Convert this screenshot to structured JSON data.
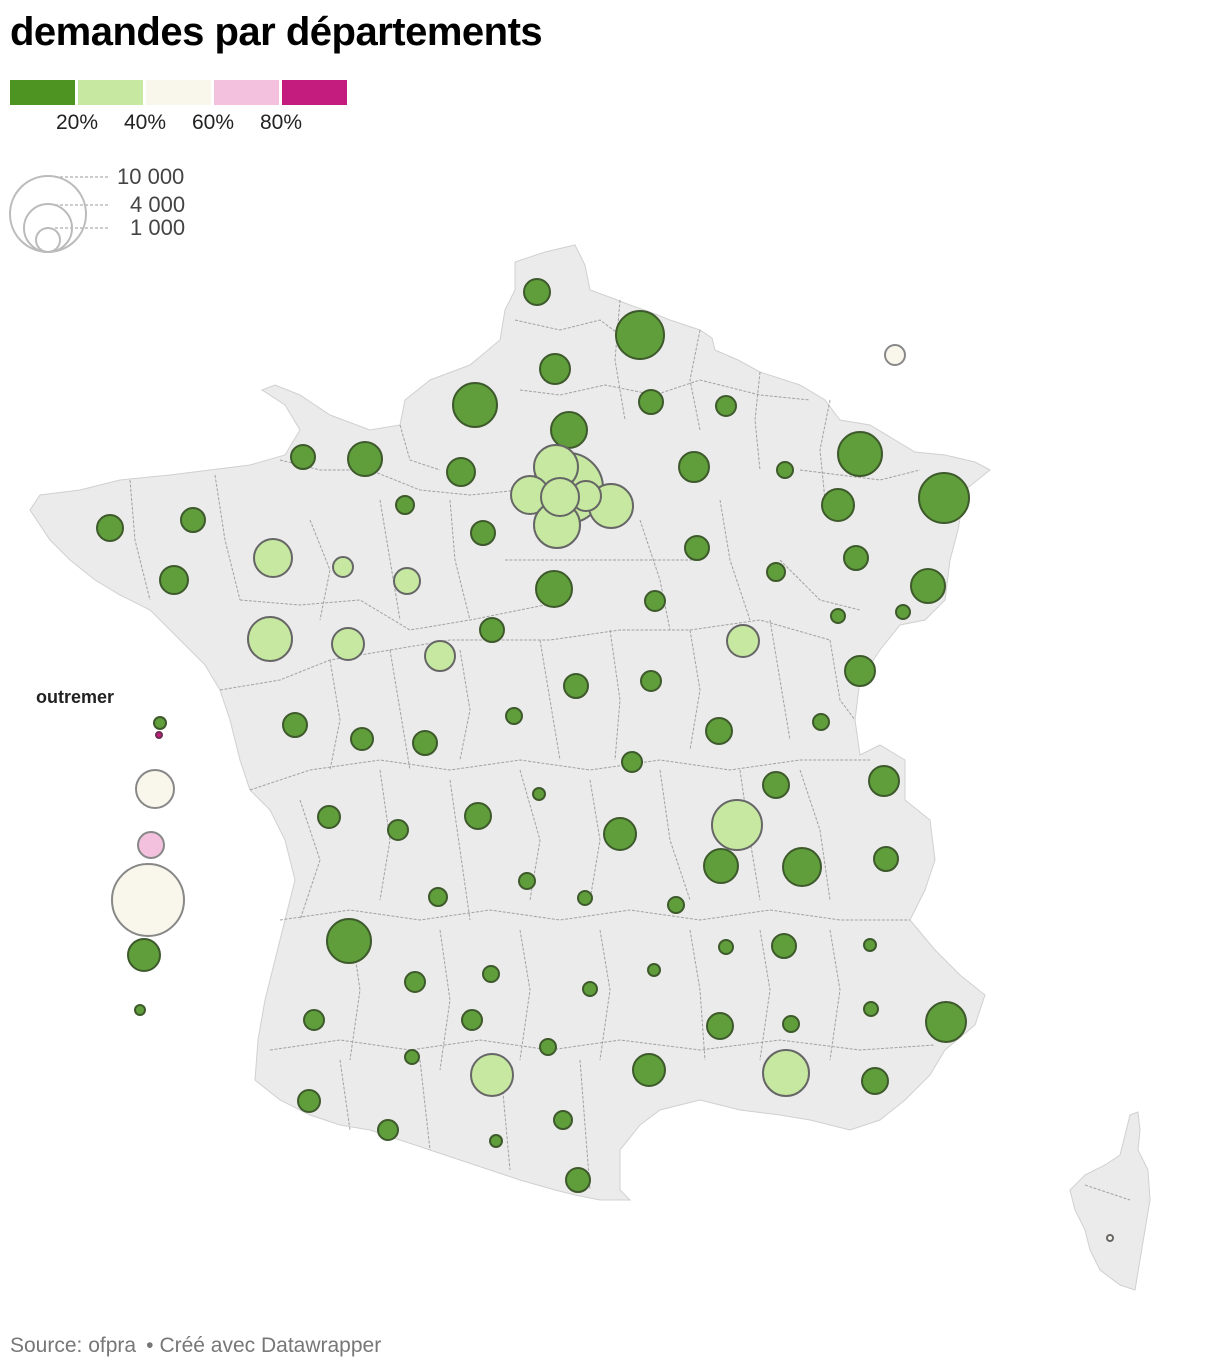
{
  "title": "demandes par départements",
  "legend": {
    "colors": [
      "#4e9423",
      "#c6e8a0",
      "#f9f6ec",
      "#f3c1de",
      "#c41c7e"
    ],
    "ticks": [
      "20%",
      "40%",
      "60%",
      "80%"
    ],
    "sizes": [
      "10 000",
      "4 000",
      "1 000"
    ]
  },
  "outremer_label": "outremer",
  "footer": {
    "source": "Source: ofpra",
    "credit": "Créé avec Datawrapper"
  },
  "map_style": {
    "land_color": "#ebebeb",
    "border_color": "#8a8a8a"
  }
}
